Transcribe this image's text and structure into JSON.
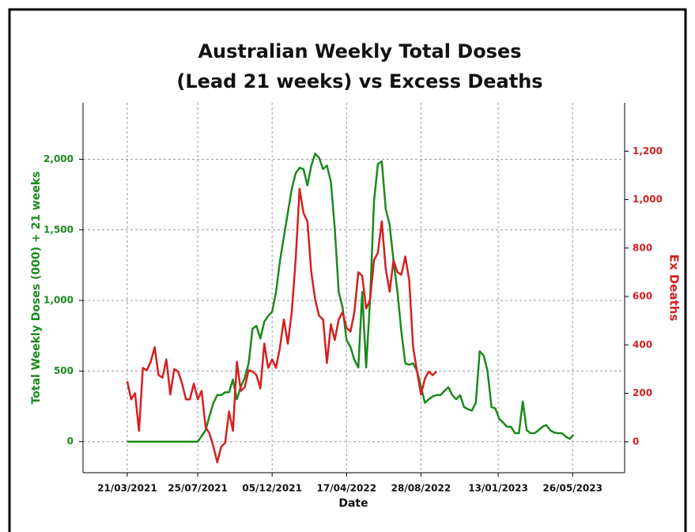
{
  "chart_data": {
    "type": "line",
    "title": [
      "Australian Weekly Total Doses",
      "(Lead 21 weeks) vs Excess Deaths"
    ],
    "x_label": "Date",
    "y_label": "Total Weekly Doses (000) + 21 weeks",
    "y2_label": "Ex Deaths",
    "x": [
      "21/03/2021",
      "28/03/2021",
      "04/04/2021",
      "11/04/2021",
      "18/04/2021",
      "25/04/2021",
      "02/05/2021",
      "09/05/2021",
      "16/05/2021",
      "23/05/2021",
      "30/05/2021",
      "06/06/2021",
      "13/06/2021",
      "20/06/2021",
      "27/06/2021",
      "04/07/2021",
      "11/07/2021",
      "18/07/2021",
      "25/07/2021",
      "01/08/2021",
      "08/08/2021",
      "15/08/2021",
      "22/08/2021",
      "29/08/2021",
      "05/09/2021",
      "12/09/2021",
      "19/09/2021",
      "26/09/2021",
      "03/10/2021",
      "10/10/2021",
      "17/10/2021",
      "24/10/2021",
      "31/10/2021",
      "07/11/2021",
      "14/11/2021",
      "21/11/2021",
      "28/11/2021",
      "05/12/2021",
      "12/12/2021",
      "19/12/2021",
      "26/12/2021",
      "02/01/2022",
      "09/01/2022",
      "16/01/2022",
      "23/01/2022",
      "30/01/2022",
      "06/02/2022",
      "13/02/2022",
      "20/02/2022",
      "27/02/2022",
      "06/03/2022",
      "13/03/2022",
      "20/03/2022",
      "27/03/2022",
      "03/04/2022",
      "10/04/2022",
      "17/04/2022",
      "24/04/2022",
      "01/05/2022",
      "08/05/2022",
      "15/05/2022",
      "22/05/2022",
      "29/05/2022",
      "05/06/2022",
      "12/06/2022",
      "19/06/2022",
      "26/06/2022",
      "03/07/2022",
      "10/07/2022",
      "17/07/2022",
      "24/07/2022",
      "31/07/2022",
      "07/08/2022",
      "14/08/2022",
      "21/08/2022",
      "28/08/2022",
      "04/09/2022",
      "11/09/2022",
      "18/09/2022",
      "25/09/2022",
      "02/10/2022",
      "09/10/2022",
      "16/10/2022",
      "23/10/2022",
      "30/10/2022",
      "06/11/2022",
      "13/11/2022",
      "20/11/2022",
      "27/11/2022",
      "04/12/2022",
      "11/12/2022",
      "18/12/2022",
      "25/12/2022",
      "01/01/2023",
      "08/01/2023",
      "15/01/2023",
      "22/01/2023",
      "29/01/2023",
      "05/02/2023",
      "12/02/2023",
      "19/02/2023",
      "26/02/2023",
      "05/03/2023",
      "12/03/2023",
      "19/03/2023",
      "26/03/2023",
      "02/04/2023",
      "09/04/2023",
      "16/04/2023",
      "23/04/2023",
      "30/04/2023",
      "07/05/2023",
      "14/05/2023",
      "21/05/2023",
      "28/05/2023"
    ],
    "series": [
      {
        "name": "Total Weekly Doses (000) + 21 weeks",
        "color": "#1b8a1b",
        "axis": "y",
        "values": [
          0,
          0,
          0,
          0,
          0,
          0,
          0,
          0,
          0,
          0,
          0,
          0,
          0,
          0,
          0,
          0,
          0,
          0,
          0,
          40,
          80,
          180,
          275,
          330,
          330,
          350,
          350,
          440,
          300,
          390,
          450,
          555,
          800,
          820,
          730,
          850,
          890,
          920,
          1060,
          1280,
          1450,
          1620,
          1790,
          1900,
          1940,
          1930,
          1815,
          1955,
          2040,
          2010,
          1930,
          1955,
          1840,
          1510,
          1060,
          950,
          720,
          670,
          580,
          525,
          1060,
          525,
          1000,
          1700,
          1965,
          1985,
          1650,
          1535,
          1280,
          1060,
          780,
          555,
          545,
          555,
          500,
          390,
          275,
          300,
          320,
          330,
          330,
          360,
          385,
          330,
          300,
          330,
          245,
          230,
          220,
          275,
          640,
          610,
          500,
          245,
          235,
          160,
          135,
          105,
          105,
          60,
          60,
          285,
          80,
          60,
          60,
          80,
          105,
          118,
          80,
          65,
          60,
          60,
          35,
          20,
          50
        ]
      },
      {
        "name": "Ex Deaths",
        "color": "#d42020",
        "axis": "y2",
        "values": [
          250,
          175,
          200,
          45,
          305,
          295,
          330,
          390,
          275,
          265,
          340,
          195,
          300,
          290,
          240,
          175,
          175,
          240,
          175,
          210,
          60,
          35,
          -20,
          -85,
          -20,
          -5,
          125,
          45,
          330,
          210,
          225,
          295,
          290,
          275,
          220,
          405,
          305,
          340,
          305,
          390,
          505,
          405,
          535,
          750,
          1045,
          945,
          910,
          700,
          585,
          520,
          505,
          325,
          485,
          420,
          505,
          535,
          470,
          455,
          535,
          700,
          685,
          550,
          585,
          750,
          780,
          910,
          715,
          620,
          750,
          700,
          690,
          765,
          665,
          390,
          290,
          195,
          260,
          290,
          275,
          290,
          null,
          null,
          null,
          null,
          null,
          null,
          null,
          null,
          null,
          null,
          null,
          null,
          null,
          null,
          null,
          null,
          null,
          null,
          null,
          null,
          null,
          null,
          null,
          null,
          null,
          null,
          null,
          null,
          null,
          null,
          null,
          null,
          null,
          null,
          null
        ]
      }
    ],
    "xlim": [
      "01/01/2021",
      "27/08/2023"
    ],
    "xticks": [
      "21/03/2021",
      "25/07/2021",
      "05/12/2021",
      "17/04/2022",
      "28/08/2022",
      "13/01/2023",
      "26/05/2023"
    ],
    "ylim": [
      -220,
      2400
    ],
    "yticks": [
      0,
      500,
      {
        "value": 1000,
        "label": "1,000"
      },
      {
        "value": 1500,
        "label": "1,500"
      },
      {
        "value": 2000,
        "label": "2,000"
      }
    ],
    "y2lim": [
      -128,
      1400
    ],
    "y2ticks": [
      0,
      200,
      400,
      600,
      800,
      {
        "value": 1000,
        "label": "1,000"
      },
      {
        "value": 1200,
        "label": "1,200"
      }
    ],
    "grid": true
  }
}
